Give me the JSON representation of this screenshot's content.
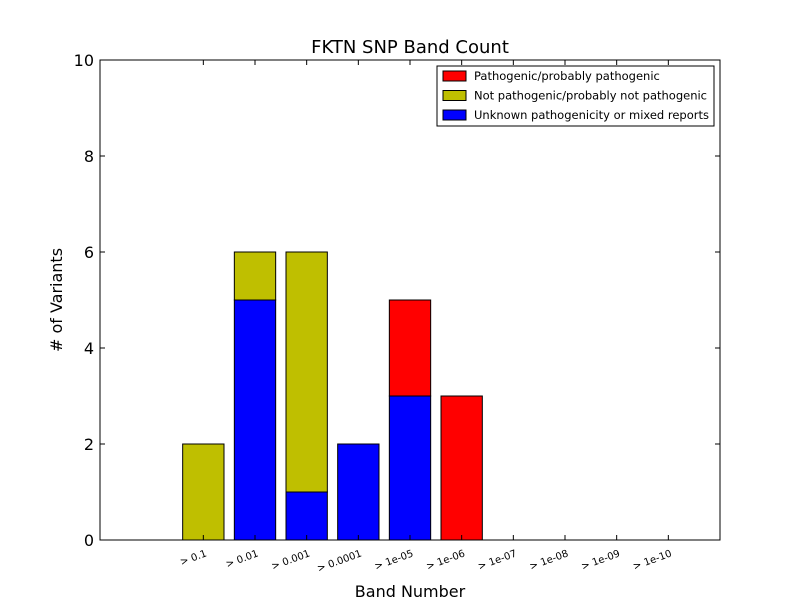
{
  "chart_data": {
    "type": "bar",
    "stacked": true,
    "title": "FKTN SNP Band Count",
    "xlabel": "Band Number",
    "ylabel": "# of Variants",
    "ylim": [
      0,
      10
    ],
    "yticks": [
      "0",
      "2",
      "4",
      "6",
      "8",
      "10"
    ],
    "categories": [
      "> 0.1",
      "> 0.01",
      "> 0.001",
      "> 0.0001",
      "> 1e-05",
      "> 1e-06",
      "> 1e-07",
      "> 1e-08",
      "> 1e-09",
      "> 1e-10"
    ],
    "series": [
      {
        "name": "Unknown pathogenicity or mixed reports",
        "color": "#0000ff",
        "values": [
          0,
          5,
          1,
          2,
          3,
          0,
          0,
          0,
          0,
          0
        ]
      },
      {
        "name": "Not pathogenic/probably not pathogenic",
        "color": "#bfbf00",
        "values": [
          2,
          1,
          5,
          0,
          0,
          0,
          0,
          0,
          0,
          0
        ]
      },
      {
        "name": "Pathogenic/probably pathogenic",
        "color": "#ff0000",
        "values": [
          0,
          0,
          0,
          0,
          2,
          3,
          0,
          0,
          0,
          0
        ]
      }
    ],
    "legend_order": [
      2,
      1,
      0
    ],
    "legend_position": "top-right",
    "grid": false
  }
}
